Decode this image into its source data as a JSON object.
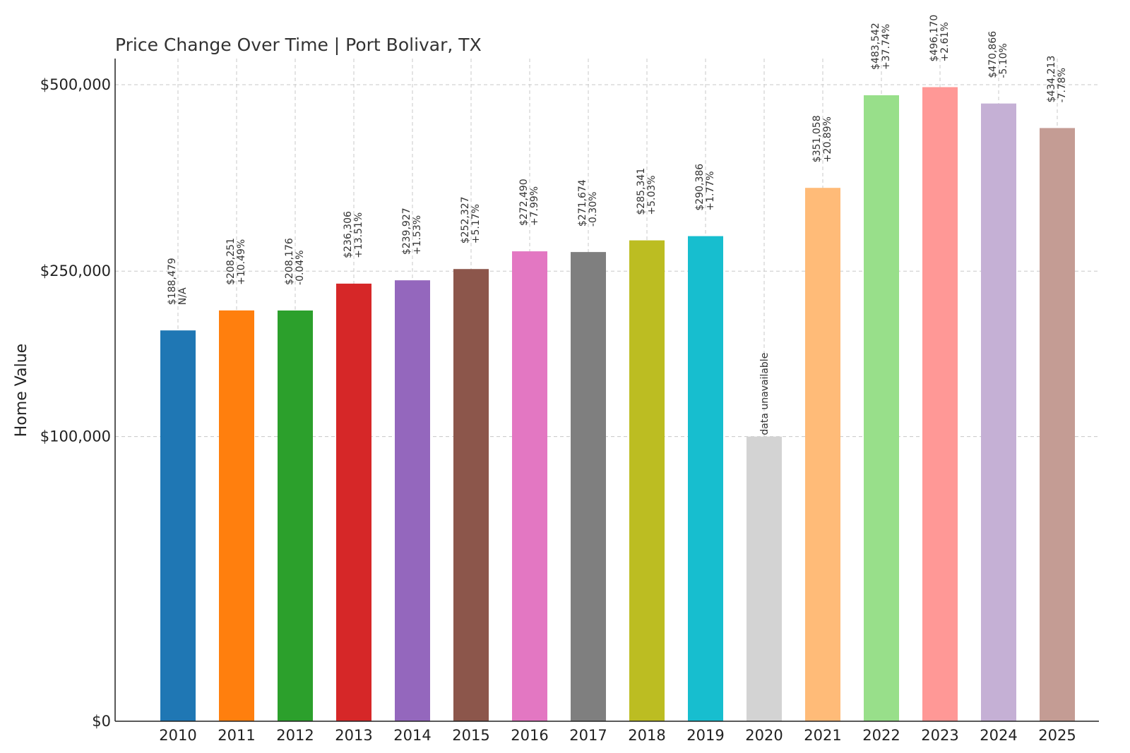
{
  "chart_data": {
    "type": "bar",
    "title": "Price Change Over Time | Port Bolivar, TX",
    "xlabel": "",
    "ylabel": "Home Value",
    "yscale": "sqrt",
    "ylim": [
      0,
      525000
    ],
    "yticks": [
      {
        "value": 0,
        "label": "$0"
      },
      {
        "value": 100000,
        "label": "$100,000"
      },
      {
        "value": 250000,
        "label": "$250,000"
      },
      {
        "value": 500000,
        "label": "$500,000"
      }
    ],
    "grid": true,
    "categories": [
      "2010",
      "2011",
      "2012",
      "2013",
      "2014",
      "2015",
      "2016",
      "2017",
      "2018",
      "2019",
      "2020",
      "2021",
      "2022",
      "2023",
      "2024",
      "2025"
    ],
    "values": [
      188479,
      208251,
      208176,
      236306,
      239927,
      252327,
      272490,
      271674,
      285341,
      290386,
      null,
      351058,
      483542,
      496170,
      470866,
      434213
    ],
    "placeholder_value": 100000,
    "price_labels": [
      "$188,479",
      "$208,251",
      "$208,176",
      "$236,306",
      "$239,927",
      "$252,327",
      "$272,490",
      "$271,674",
      "$285,341",
      "$290,386",
      "",
      "$351,058",
      "$483,542",
      "$496,170",
      "$470,866",
      "$434,213"
    ],
    "change_labels": [
      "N/A",
      "+10.49%",
      "-0.04%",
      "+13.51%",
      "+1.53%",
      "+5.17%",
      "+7.99%",
      "-0.30%",
      "+5.03%",
      "+1.77%",
      "",
      "+20.89%",
      "+37.74%",
      "+2.61%",
      "-5.10%",
      "-7.78%"
    ],
    "unavailable_label": "data unavailable",
    "colors": [
      "#1f77b4",
      "#ff7f0e",
      "#2ca02c",
      "#d62728",
      "#9467bd",
      "#8c564b",
      "#e377c2",
      "#7f7f7f",
      "#bcbd22",
      "#17becf",
      "#d3d3d3",
      "#ffbb78",
      "#98df8a",
      "#ff9896",
      "#c5b0d5",
      "#c49c94"
    ]
  }
}
